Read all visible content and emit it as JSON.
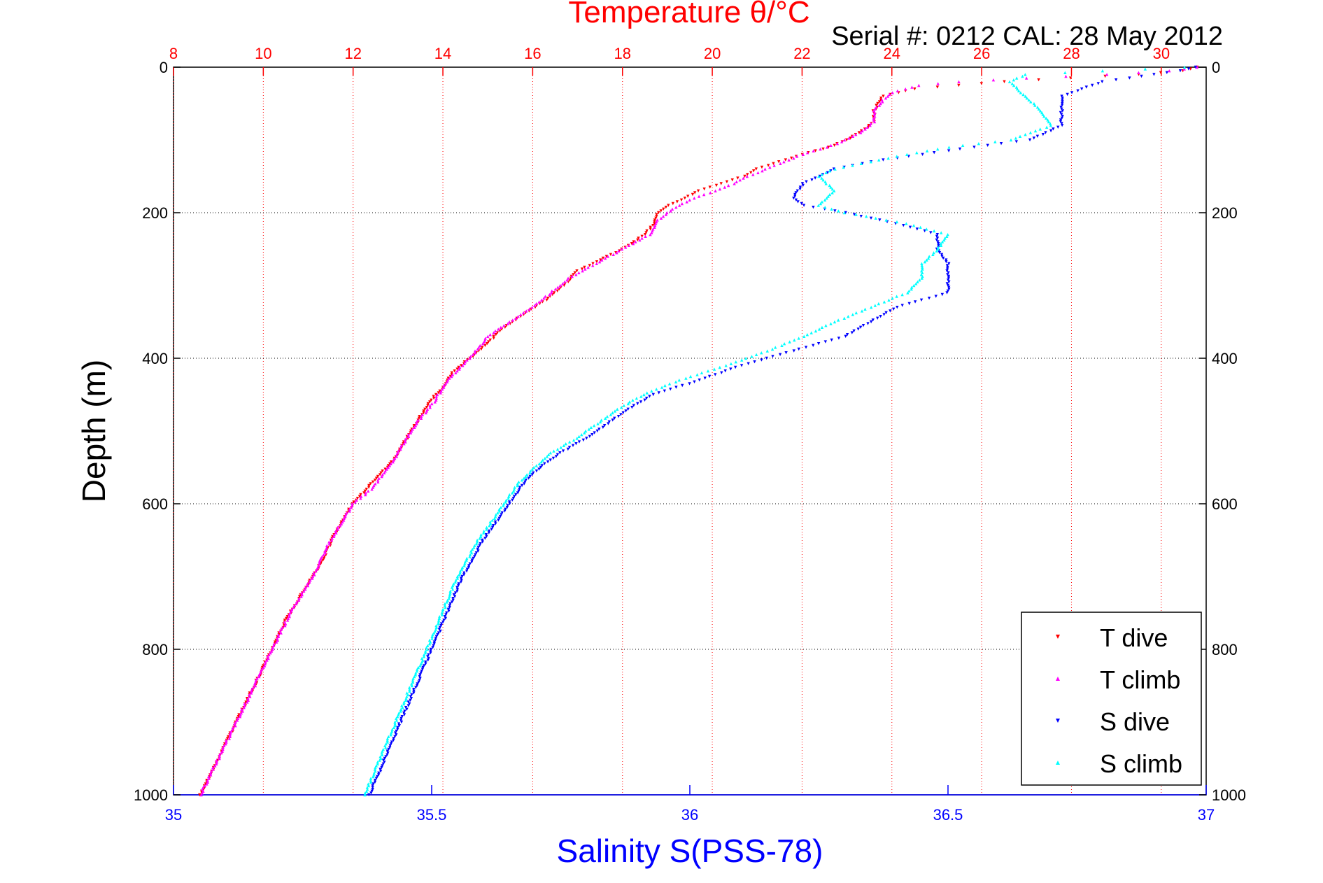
{
  "chart_data": {
    "type": "scatter",
    "title": "Temperature θ/°C",
    "subtitle": "Serial #: 0212  CAL: 28 May 2012",
    "xlabel": "Salinity S(PSS-78)",
    "ylabel": "Depth (m)",
    "temperature_axis": {
      "range": [
        8,
        31
      ],
      "ticks": [
        "8",
        "10",
        "12",
        "14",
        "16",
        "18",
        "20",
        "22",
        "24",
        "26",
        "28",
        "30"
      ],
      "color": "#ff0000"
    },
    "salinity_axis": {
      "range": [
        35,
        37
      ],
      "ticks": [
        "35",
        "35.5",
        "36",
        "36.5",
        "37"
      ],
      "color": "#0000ff"
    },
    "depth_axis": {
      "range": [
        0,
        1000
      ],
      "reversed": true,
      "ticks": [
        "0",
        "200",
        "400",
        "600",
        "800",
        "1000"
      ]
    },
    "grid": true,
    "legend_position": "bottom-right",
    "series": [
      {
        "name": "T dive",
        "axis": "temperature",
        "color": "#ff0000",
        "marker": "triangle-down",
        "profile": [
          [
            0,
            30.8
          ],
          [
            5,
            30.5
          ],
          [
            10,
            29.5
          ],
          [
            20,
            26.5
          ],
          [
            30,
            24.5
          ],
          [
            40,
            23.8
          ],
          [
            50,
            23.7
          ],
          [
            60,
            23.6
          ],
          [
            75,
            23.6
          ],
          [
            85,
            23.4
          ],
          [
            100,
            23.0
          ],
          [
            110,
            22.6
          ],
          [
            120,
            22.0
          ],
          [
            130,
            21.5
          ],
          [
            140,
            21.0
          ],
          [
            150,
            20.7
          ],
          [
            160,
            20.2
          ],
          [
            170,
            19.7
          ],
          [
            180,
            19.4
          ],
          [
            190,
            19.0
          ],
          [
            200,
            18.8
          ],
          [
            215,
            18.7
          ],
          [
            230,
            18.5
          ],
          [
            250,
            18.0
          ],
          [
            265,
            17.5
          ],
          [
            280,
            17.0
          ],
          [
            300,
            16.7
          ],
          [
            320,
            16.3
          ],
          [
            340,
            15.8
          ],
          [
            360,
            15.3
          ],
          [
            380,
            15.0
          ],
          [
            400,
            14.6
          ],
          [
            420,
            14.2
          ],
          [
            440,
            14.0
          ],
          [
            460,
            13.7
          ],
          [
            480,
            13.5
          ],
          [
            500,
            13.3
          ],
          [
            520,
            13.1
          ],
          [
            540,
            12.9
          ],
          [
            560,
            12.6
          ],
          [
            580,
            12.3
          ],
          [
            600,
            12.0
          ],
          [
            640,
            11.6
          ],
          [
            680,
            11.3
          ],
          [
            720,
            10.9
          ],
          [
            760,
            10.5
          ],
          [
            800,
            10.2
          ],
          [
            850,
            9.8
          ],
          [
            900,
            9.4
          ],
          [
            950,
            9.0
          ],
          [
            1000,
            8.6
          ]
        ]
      },
      {
        "name": "T climb",
        "axis": "temperature",
        "color": "#ff00ff",
        "marker": "triangle-up",
        "profile": [
          [
            0,
            30.8
          ],
          [
            5,
            30.2
          ],
          [
            10,
            28.8
          ],
          [
            15,
            27.0
          ],
          [
            20,
            25.5
          ],
          [
            25,
            24.6
          ],
          [
            35,
            24.0
          ],
          [
            45,
            23.8
          ],
          [
            60,
            23.6
          ],
          [
            75,
            23.6
          ],
          [
            90,
            23.3
          ],
          [
            105,
            22.8
          ],
          [
            120,
            22.0
          ],
          [
            135,
            21.4
          ],
          [
            150,
            20.8
          ],
          [
            165,
            20.3
          ],
          [
            180,
            19.6
          ],
          [
            195,
            19.1
          ],
          [
            210,
            18.8
          ],
          [
            230,
            18.6
          ],
          [
            250,
            18.0
          ],
          [
            270,
            17.4
          ],
          [
            290,
            16.8
          ],
          [
            310,
            16.4
          ],
          [
            330,
            16.0
          ],
          [
            350,
            15.5
          ],
          [
            370,
            15.0
          ],
          [
            400,
            14.6
          ],
          [
            430,
            14.1
          ],
          [
            460,
            13.8
          ],
          [
            490,
            13.4
          ],
          [
            520,
            13.1
          ],
          [
            550,
            12.8
          ],
          [
            580,
            12.4
          ],
          [
            600,
            12.0
          ],
          [
            650,
            11.5
          ],
          [
            700,
            11.1
          ],
          [
            750,
            10.6
          ],
          [
            800,
            10.2
          ],
          [
            850,
            9.8
          ],
          [
            900,
            9.4
          ],
          [
            950,
            9.0
          ],
          [
            1000,
            8.6
          ]
        ]
      },
      {
        "name": "S dive",
        "axis": "salinity",
        "color": "#0000ff",
        "marker": "triangle-down",
        "profile": [
          [
            0,
            36.98
          ],
          [
            5,
            36.95
          ],
          [
            10,
            36.9
          ],
          [
            20,
            36.8
          ],
          [
            40,
            36.72
          ],
          [
            60,
            36.72
          ],
          [
            80,
            36.72
          ],
          [
            100,
            36.66
          ],
          [
            110,
            36.55
          ],
          [
            120,
            36.45
          ],
          [
            130,
            36.35
          ],
          [
            140,
            36.28
          ],
          [
            160,
            36.22
          ],
          [
            180,
            36.2
          ],
          [
            190,
            36.22
          ],
          [
            200,
            36.3
          ],
          [
            215,
            36.4
          ],
          [
            230,
            36.48
          ],
          [
            250,
            36.48
          ],
          [
            270,
            36.5
          ],
          [
            290,
            36.5
          ],
          [
            310,
            36.5
          ],
          [
            330,
            36.4
          ],
          [
            350,
            36.35
          ],
          [
            370,
            36.3
          ],
          [
            390,
            36.2
          ],
          [
            410,
            36.1
          ],
          [
            430,
            36.02
          ],
          [
            450,
            35.93
          ],
          [
            470,
            35.88
          ],
          [
            490,
            35.84
          ],
          [
            510,
            35.8
          ],
          [
            530,
            35.75
          ],
          [
            550,
            35.71
          ],
          [
            570,
            35.68
          ],
          [
            600,
            35.65
          ],
          [
            650,
            35.6
          ],
          [
            700,
            35.56
          ],
          [
            750,
            35.53
          ],
          [
            800,
            35.5
          ],
          [
            850,
            35.47
          ],
          [
            900,
            35.44
          ],
          [
            950,
            35.41
          ],
          [
            1000,
            35.38
          ]
        ]
      },
      {
        "name": "S climb",
        "axis": "salinity",
        "color": "#00ffff",
        "marker": "triangle-up",
        "profile": [
          [
            0,
            36.96
          ],
          [
            5,
            36.8
          ],
          [
            10,
            36.65
          ],
          [
            20,
            36.62
          ],
          [
            40,
            36.65
          ],
          [
            60,
            36.68
          ],
          [
            80,
            36.7
          ],
          [
            100,
            36.62
          ],
          [
            110,
            36.5
          ],
          [
            120,
            36.42
          ],
          [
            130,
            36.35
          ],
          [
            140,
            36.28
          ],
          [
            150,
            36.25
          ],
          [
            170,
            36.28
          ],
          [
            190,
            36.25
          ],
          [
            200,
            36.3
          ],
          [
            215,
            36.42
          ],
          [
            230,
            36.5
          ],
          [
            250,
            36.48
          ],
          [
            270,
            36.45
          ],
          [
            290,
            36.45
          ],
          [
            310,
            36.42
          ],
          [
            330,
            36.35
          ],
          [
            350,
            36.28
          ],
          [
            370,
            36.22
          ],
          [
            390,
            36.15
          ],
          [
            410,
            36.07
          ],
          [
            430,
            35.98
          ],
          [
            450,
            35.91
          ],
          [
            470,
            35.86
          ],
          [
            490,
            35.82
          ],
          [
            510,
            35.78
          ],
          [
            530,
            35.73
          ],
          [
            550,
            35.7
          ],
          [
            570,
            35.67
          ],
          [
            600,
            35.64
          ],
          [
            650,
            35.59
          ],
          [
            700,
            35.55
          ],
          [
            750,
            35.52
          ],
          [
            800,
            35.49
          ],
          [
            850,
            35.46
          ],
          [
            900,
            35.43
          ],
          [
            950,
            35.4
          ],
          [
            1000,
            35.37
          ]
        ]
      }
    ]
  }
}
